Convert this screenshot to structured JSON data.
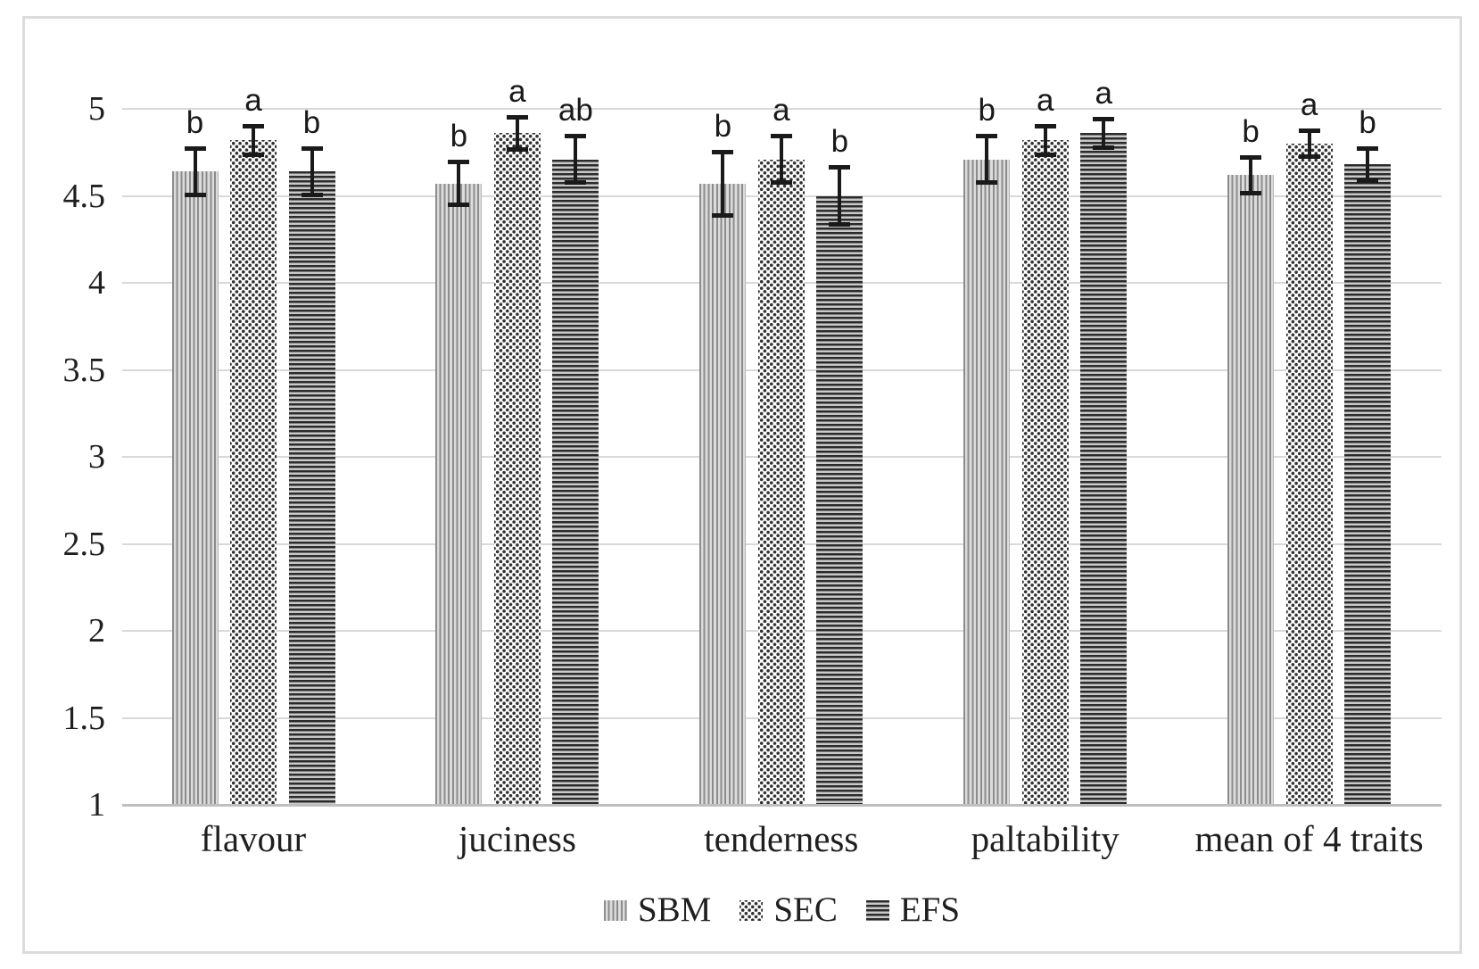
{
  "chart_data": {
    "type": "bar",
    "title": "",
    "xlabel": "",
    "ylabel": "",
    "categories": [
      "flavour",
      "juciness",
      "tenderness",
      "paltability",
      "mean of 4 traits"
    ],
    "series": [
      {
        "name": "SBM",
        "pattern": "vertical-stripes-icon",
        "values": [
          4.64,
          4.57,
          4.57,
          4.71,
          4.62
        ],
        "errors": [
          0.13,
          0.12,
          0.18,
          0.13,
          0.1
        ],
        "letters": [
          "b",
          "b",
          "b",
          "b",
          "b"
        ]
      },
      {
        "name": "SEC",
        "pattern": "dots-icon",
        "values": [
          4.82,
          4.86,
          4.71,
          4.82,
          4.8
        ],
        "errors": [
          0.08,
          0.09,
          0.13,
          0.08,
          0.07
        ],
        "letters": [
          "a",
          "a",
          "a",
          "a",
          "a"
        ]
      },
      {
        "name": "EFS",
        "pattern": "horizontal-stripes-icon",
        "values": [
          4.64,
          4.71,
          4.5,
          4.86,
          4.68
        ],
        "errors": [
          0.13,
          0.13,
          0.16,
          0.08,
          0.09
        ],
        "letters": [
          "b",
          "ab",
          "b",
          "a",
          "b"
        ]
      }
    ],
    "ylim": [
      1,
      5
    ],
    "ytick_step": 0.5,
    "yticks": [
      "5",
      "4.5",
      "4",
      "3.5",
      "3",
      "2.5",
      "2",
      "1.5",
      "1"
    ],
    "grid": true,
    "error_bars": true,
    "legend_position": "bottom",
    "legend": [
      "SBM",
      "SEC",
      "EFS"
    ]
  },
  "colors": {
    "background": "#ffffff",
    "frame_border": "#dcdcdc",
    "gridline": "#d9d9d9",
    "axis_line": "#bfbfbf",
    "text": "#1f1f1f",
    "error_bar": "#1a1a1a",
    "pattern_dark": "#2b2b2b",
    "pattern_mid": "#8c8c8c",
    "pattern_light": "#dcdcdc"
  }
}
